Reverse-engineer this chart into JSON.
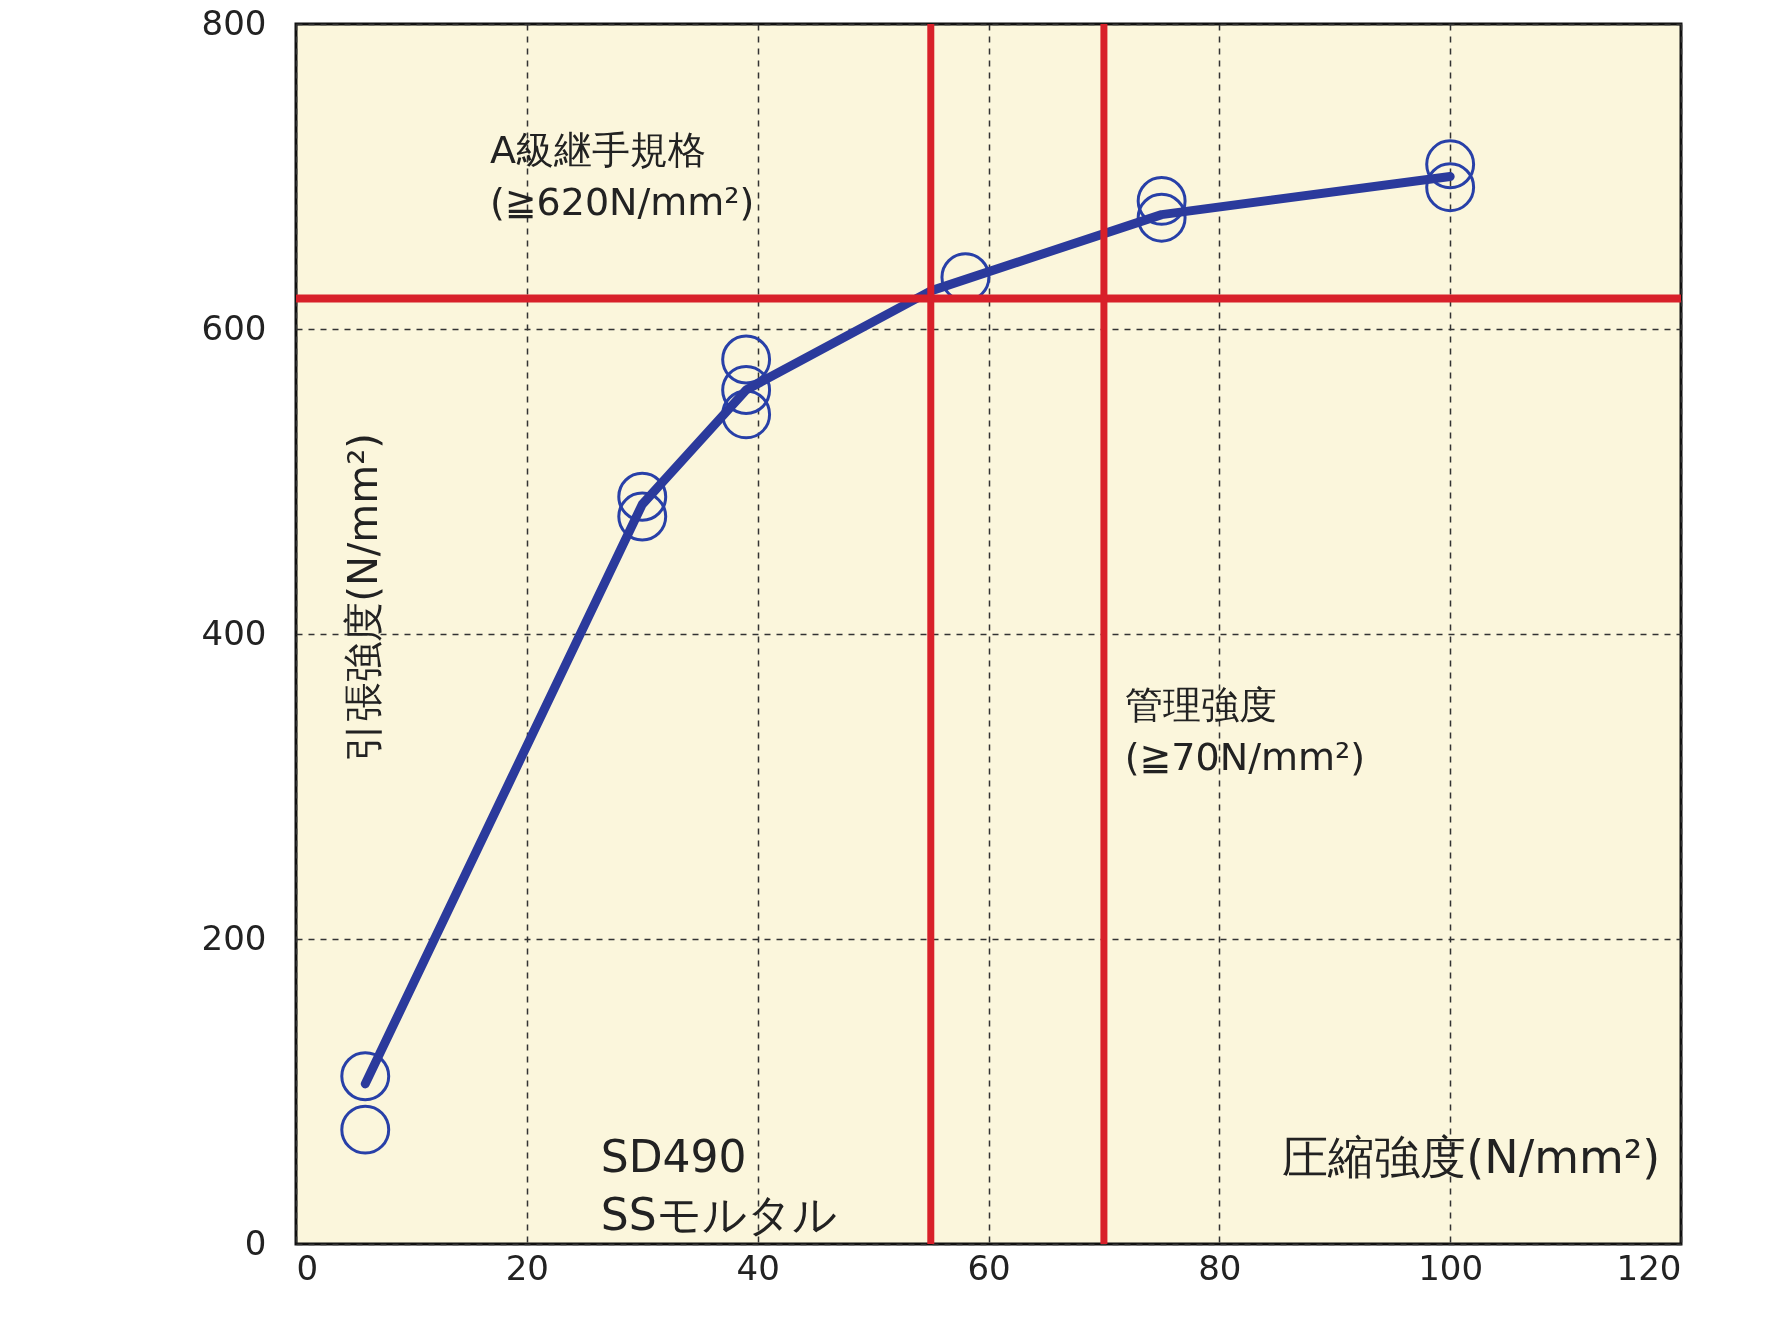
{
  "chart_data": {
    "type": "scatter",
    "xlabel": "圧縮強度(N/mm²)",
    "ylabel": "引張強度(N/mm²)",
    "xlim": [
      0,
      120
    ],
    "xticks": [
      0,
      20,
      40,
      60,
      80,
      100,
      120
    ],
    "ylim": [
      0,
      800
    ],
    "yticks": [
      0,
      200,
      400,
      600,
      800
    ],
    "grid": true,
    "marker": "circle",
    "series": [
      {
        "color": "#2840a8",
        "x": [
          6,
          6,
          30,
          30,
          39,
          39,
          39,
          58,
          75,
          75,
          100,
          100
        ],
        "values": [
          110,
          75,
          490,
          477,
          580,
          560,
          544,
          634,
          684,
          673,
          708,
          693
        ]
      },
      {
        "type": "line",
        "color": "#2b3a9c",
        "marker": "none",
        "x": [
          6,
          30,
          39,
          55,
          75,
          100
        ],
        "values": [
          105,
          485,
          560,
          625,
          675,
          700
        ]
      }
    ],
    "ref_lines": [
      {
        "axis": "y",
        "value": 620,
        "color": "#d8202a",
        "label": "A級継手規格\n(≧620N/mm²)"
      },
      {
        "axis": "x",
        "value": 70,
        "color": "#d8202a",
        "label": "管理強度\n(≧70N/mm²)"
      },
      {
        "axis": "x",
        "value": 55,
        "color": "#d8202a"
      }
    ],
    "annotations": [
      "SD490\nSSモルタル"
    ]
  }
}
